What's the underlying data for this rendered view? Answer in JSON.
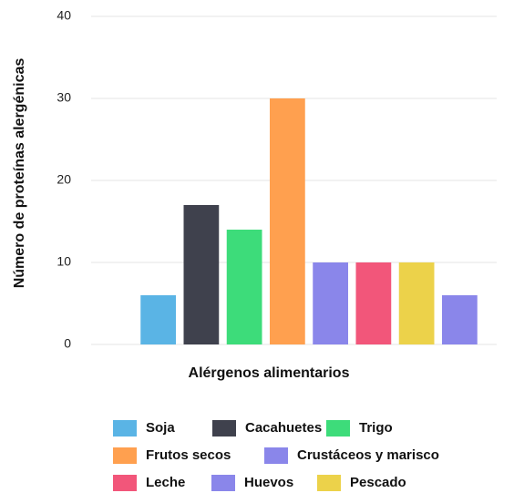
{
  "chart_data": {
    "type": "bar",
    "x_label": "Alérgenos alimentarios",
    "y_label": "Número de proteínas alergénicas",
    "categories": [
      "Soja",
      "Cacahuetes",
      "Trigo",
      "Frutos secos",
      "Crustáceos y marisco",
      "Leche",
      "Pescado",
      "Huevos"
    ],
    "values": [
      6,
      17,
      14,
      30,
      10,
      10,
      10,
      6
    ],
    "colors": [
      "#5ab4e5",
      "#3f414d",
      "#3ddc7a",
      "#ffa04f",
      "#8a86ea",
      "#f2567a",
      "#ecd24a",
      "#8a86ea"
    ],
    "ylim": [
      0,
      40
    ],
    "yticks": [
      0,
      10,
      20,
      30,
      40
    ],
    "grid": true
  }
}
